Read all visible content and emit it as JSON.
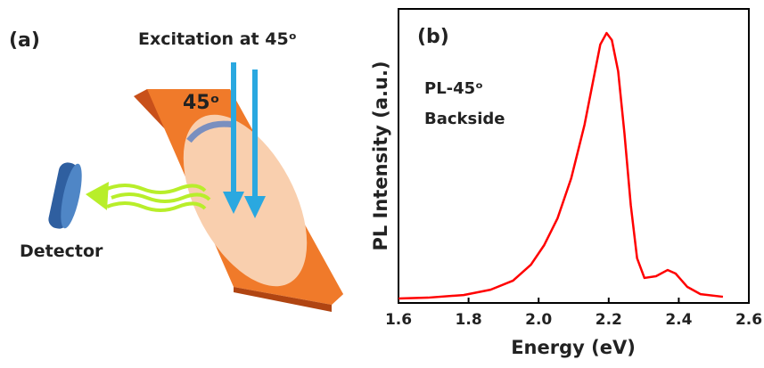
{
  "diagram": {
    "label": "(a)",
    "excitation": "Excitation at 45ᵒ",
    "angle": "45ᵒ",
    "detector": "Detector"
  },
  "chart_data": {
    "type": "line",
    "panel_label": "(b)",
    "annotations": [
      "PL-45ᵒ",
      "Backside"
    ],
    "x_label": "Energy (eV)",
    "y_label": "PL Intensity (a.u.)",
    "x": [
      1.6,
      1.684,
      1.786,
      1.863,
      1.927,
      1.978,
      2.016,
      2.054,
      2.093,
      2.131,
      2.156,
      2.176,
      2.194,
      2.209,
      2.227,
      2.245,
      2.263,
      2.281,
      2.302,
      2.335,
      2.368,
      2.391,
      2.424,
      2.462,
      2.526
    ],
    "series": [
      {
        "color": "#ff0000",
        "values": [
          0.015,
          0.018,
          0.027,
          0.045,
          0.076,
          0.13,
          0.197,
          0.288,
          0.424,
          0.606,
          0.758,
          0.879,
          0.918,
          0.894,
          0.788,
          0.576,
          0.333,
          0.152,
          0.085,
          0.091,
          0.112,
          0.1,
          0.055,
          0.03,
          0.021
        ]
      }
    ],
    "xlim": [
      1.6,
      2.6
    ],
    "ylim": [
      0,
      1
    ],
    "xticks": [
      1.6,
      1.8,
      {
        "value": 2,
        "label": "2.0"
      },
      2.2,
      2.4,
      2.6
    ]
  }
}
